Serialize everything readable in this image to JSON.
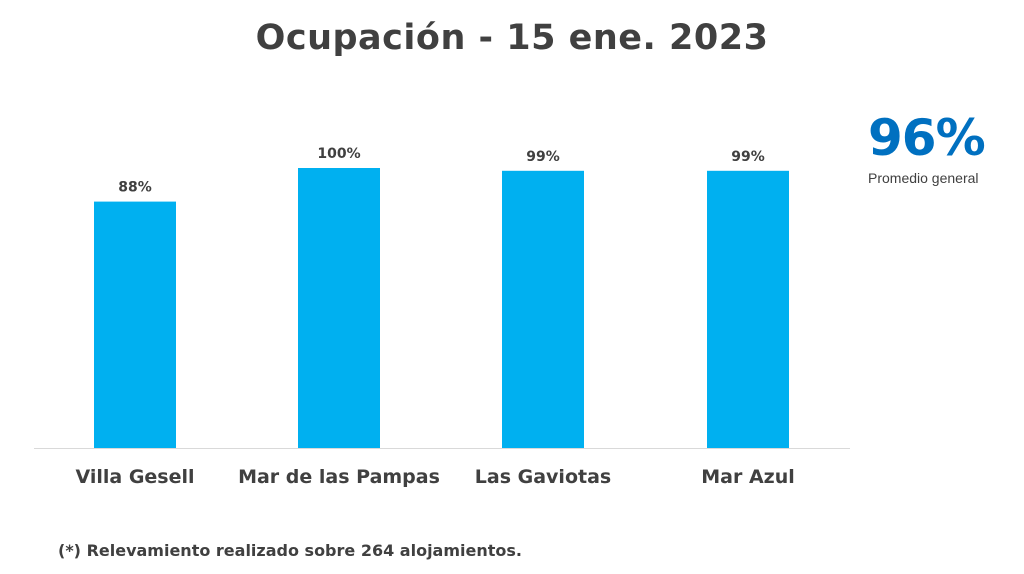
{
  "chart_data": {
    "type": "bar",
    "title": "Ocupación - 15 ene. 2023",
    "categories": [
      "Villa Gesell",
      "Mar de las Pampas",
      "Las Gaviotas",
      "Mar Azul"
    ],
    "values": [
      88,
      100,
      99,
      99
    ],
    "data_labels": [
      "88%",
      "100%",
      "99%",
      "99%"
    ],
    "value_unit": "%",
    "xlabel": "",
    "ylabel": "",
    "ylim": [
      0,
      110
    ],
    "grid": false,
    "bar_color": "#00b0f0"
  },
  "summary": {
    "value": "96%",
    "label": "Promedio general",
    "color": "#0070c0"
  },
  "footnote": "(*) Relevamiento realizado sobre 264 alojamientos."
}
